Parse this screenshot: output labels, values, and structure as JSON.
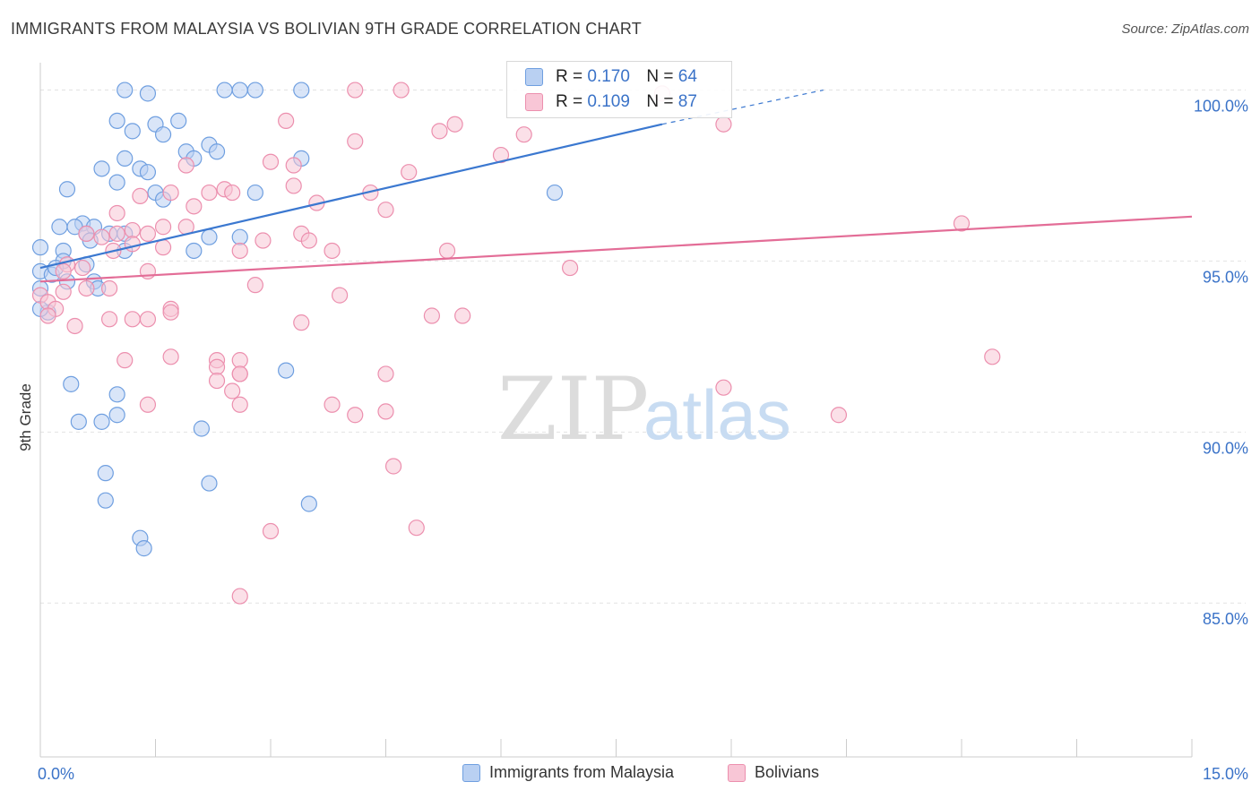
{
  "title": "IMMIGRANTS FROM MALAYSIA VS BOLIVIAN 9TH GRADE CORRELATION CHART",
  "source": "Source: ZipAtlas.com",
  "watermark": {
    "zip": "ZIP",
    "atlas": "atlas"
  },
  "legend": {
    "r_label": "R =",
    "n_label": "N =",
    "rows": [
      {
        "r": "0.170",
        "n": "64",
        "fill": "#b9d0f2",
        "stroke": "#6f9fe0"
      },
      {
        "r": "0.109",
        "n": "87",
        "fill": "#f8c6d6",
        "stroke": "#ec8fae"
      }
    ]
  },
  "bottom_legend": [
    {
      "label": "Immigrants from Malaysia",
      "fill": "#b9d0f2",
      "stroke": "#6f9fe0"
    },
    {
      "label": "Bolivians",
      "fill": "#f8c6d6",
      "stroke": "#ec8fae"
    }
  ],
  "chart_data": {
    "type": "scatter",
    "title": "IMMIGRANTS FROM MALAYSIA VS BOLIVIAN 9TH GRADE CORRELATION CHART",
    "xlabel": "",
    "ylabel": "9th Grade",
    "xlim": [
      0,
      15
    ],
    "ylim": [
      80.5,
      100.8
    ],
    "x_ticks": [
      {
        "value": 0,
        "label": "0.0%"
      },
      {
        "value": 15,
        "label": "15.0%"
      }
    ],
    "y_ticks": [
      {
        "value": 100,
        "label": "100.0%"
      },
      {
        "value": 95,
        "label": "95.0%"
      },
      {
        "value": 90,
        "label": "90.0%"
      },
      {
        "value": 85,
        "label": "85.0%"
      }
    ],
    "grid": true,
    "legend_position": "top-center",
    "series": [
      {
        "name": "Immigrants from Malaysia",
        "color": "#3b78d0",
        "fill": "#b9d0f2",
        "trend": {
          "x0": 0,
          "y0": 94.8,
          "x1": 8.1,
          "y1": 99.0,
          "dash_to_x": 10.2,
          "dash_to_y": 100.0
        },
        "points": [
          [
            1.1,
            100
          ],
          [
            1.4,
            99.9
          ],
          [
            2.4,
            100
          ],
          [
            2.6,
            100
          ],
          [
            2.8,
            100
          ],
          [
            3.4,
            100
          ],
          [
            1.0,
            99.1
          ],
          [
            1.8,
            99.1
          ],
          [
            1.5,
            99.0
          ],
          [
            1.2,
            98.8
          ],
          [
            1.6,
            98.7
          ],
          [
            2.2,
            98.4
          ],
          [
            1.9,
            98.2
          ],
          [
            2.3,
            98.2
          ],
          [
            1.1,
            98.0
          ],
          [
            2.0,
            98.0
          ],
          [
            3.4,
            98.0
          ],
          [
            0.8,
            97.7
          ],
          [
            1.3,
            97.7
          ],
          [
            1.4,
            97.6
          ],
          [
            1.0,
            97.3
          ],
          [
            0.35,
            97.1
          ],
          [
            1.5,
            97.0
          ],
          [
            1.6,
            96.8
          ],
          [
            2.8,
            97.0
          ],
          [
            6.7,
            97.0
          ],
          [
            0.55,
            96.1
          ],
          [
            0.25,
            96.0
          ],
          [
            0.45,
            96.0
          ],
          [
            0.7,
            96.0
          ],
          [
            0.6,
            95.8
          ],
          [
            0.9,
            95.8
          ],
          [
            1.1,
            95.8
          ],
          [
            0.65,
            95.6
          ],
          [
            2.2,
            95.7
          ],
          [
            2.6,
            95.7
          ],
          [
            0.0,
            95.4
          ],
          [
            0.3,
            95.3
          ],
          [
            1.1,
            95.3
          ],
          [
            2.0,
            95.3
          ],
          [
            0.6,
            94.9
          ],
          [
            0.3,
            95.0
          ],
          [
            0.0,
            94.7
          ],
          [
            0.15,
            94.6
          ],
          [
            0.35,
            94.4
          ],
          [
            0.7,
            94.4
          ],
          [
            0.0,
            94.2
          ],
          [
            0.75,
            94.2
          ],
          [
            0.1,
            93.5
          ],
          [
            0.4,
            91.4
          ],
          [
            1.0,
            91.1
          ],
          [
            3.2,
            91.8
          ],
          [
            0.5,
            90.3
          ],
          [
            0.8,
            90.3
          ],
          [
            1.0,
            90.5
          ],
          [
            2.1,
            90.1
          ],
          [
            0.85,
            88.8
          ],
          [
            2.2,
            88.5
          ],
          [
            0.85,
            88.0
          ],
          [
            3.5,
            87.9
          ],
          [
            1.3,
            86.9
          ],
          [
            1.35,
            86.6
          ],
          [
            0.0,
            93.6
          ],
          [
            0.2,
            94.8
          ]
        ]
      },
      {
        "name": "Bolivians",
        "color": "#e36d97",
        "fill": "#f8c6d6",
        "trend": {
          "x0": 0,
          "y0": 94.4,
          "x1": 15,
          "y1": 96.3
        },
        "points": [
          [
            4.1,
            100
          ],
          [
            4.7,
            100
          ],
          [
            8.1,
            99.9
          ],
          [
            3.2,
            99.1
          ],
          [
            5.4,
            99.0
          ],
          [
            8.9,
            99.0
          ],
          [
            5.2,
            98.8
          ],
          [
            6.3,
            98.7
          ],
          [
            4.1,
            98.5
          ],
          [
            6.0,
            98.1
          ],
          [
            3.0,
            97.9
          ],
          [
            3.3,
            97.8
          ],
          [
            1.9,
            97.8
          ],
          [
            4.8,
            97.6
          ],
          [
            3.3,
            97.2
          ],
          [
            2.4,
            97.1
          ],
          [
            2.2,
            97.0
          ],
          [
            2.5,
            97.0
          ],
          [
            1.7,
            97.0
          ],
          [
            1.3,
            96.9
          ],
          [
            4.3,
            97.0
          ],
          [
            3.6,
            96.7
          ],
          [
            2.0,
            96.6
          ],
          [
            4.5,
            96.5
          ],
          [
            1.0,
            96.4
          ],
          [
            1.9,
            96.0
          ],
          [
            1.6,
            96.0
          ],
          [
            1.2,
            95.9
          ],
          [
            1.4,
            95.8
          ],
          [
            0.6,
            95.8
          ],
          [
            1.0,
            95.8
          ],
          [
            3.4,
            95.8
          ],
          [
            0.8,
            95.7
          ],
          [
            2.9,
            95.6
          ],
          [
            3.5,
            95.6
          ],
          [
            1.2,
            95.5
          ],
          [
            0.95,
            95.3
          ],
          [
            2.6,
            95.3
          ],
          [
            1.6,
            95.4
          ],
          [
            3.8,
            95.3
          ],
          [
            5.3,
            95.3
          ],
          [
            12.0,
            96.1
          ],
          [
            0.35,
            94.9
          ],
          [
            0.55,
            94.8
          ],
          [
            0.3,
            94.7
          ],
          [
            1.4,
            94.7
          ],
          [
            6.9,
            94.8
          ],
          [
            2.8,
            94.3
          ],
          [
            0.6,
            94.2
          ],
          [
            0.9,
            94.2
          ],
          [
            0.3,
            94.1
          ],
          [
            0.0,
            94.0
          ],
          [
            0.1,
            93.8
          ],
          [
            0.2,
            93.6
          ],
          [
            1.7,
            93.6
          ],
          [
            3.9,
            94.0
          ],
          [
            0.1,
            93.4
          ],
          [
            1.2,
            93.3
          ],
          [
            1.4,
            93.3
          ],
          [
            0.9,
            93.3
          ],
          [
            1.7,
            93.5
          ],
          [
            3.4,
            93.2
          ],
          [
            0.45,
            93.1
          ],
          [
            5.1,
            93.4
          ],
          [
            5.5,
            93.4
          ],
          [
            1.1,
            92.1
          ],
          [
            1.7,
            92.2
          ],
          [
            2.3,
            92.1
          ],
          [
            2.6,
            92.1
          ],
          [
            2.3,
            91.9
          ],
          [
            2.6,
            91.7
          ],
          [
            2.6,
            91.7
          ],
          [
            2.3,
            91.5
          ],
          [
            4.5,
            91.7
          ],
          [
            12.4,
            92.2
          ],
          [
            8.9,
            91.3
          ],
          [
            1.4,
            90.8
          ],
          [
            2.6,
            90.8
          ],
          [
            3.8,
            90.8
          ],
          [
            4.1,
            90.5
          ],
          [
            4.5,
            90.6
          ],
          [
            10.4,
            90.5
          ],
          [
            4.6,
            89.0
          ],
          [
            3.0,
            87.1
          ],
          [
            4.9,
            87.2
          ],
          [
            2.6,
            85.2
          ],
          [
            2.5,
            91.2
          ]
        ]
      }
    ]
  }
}
